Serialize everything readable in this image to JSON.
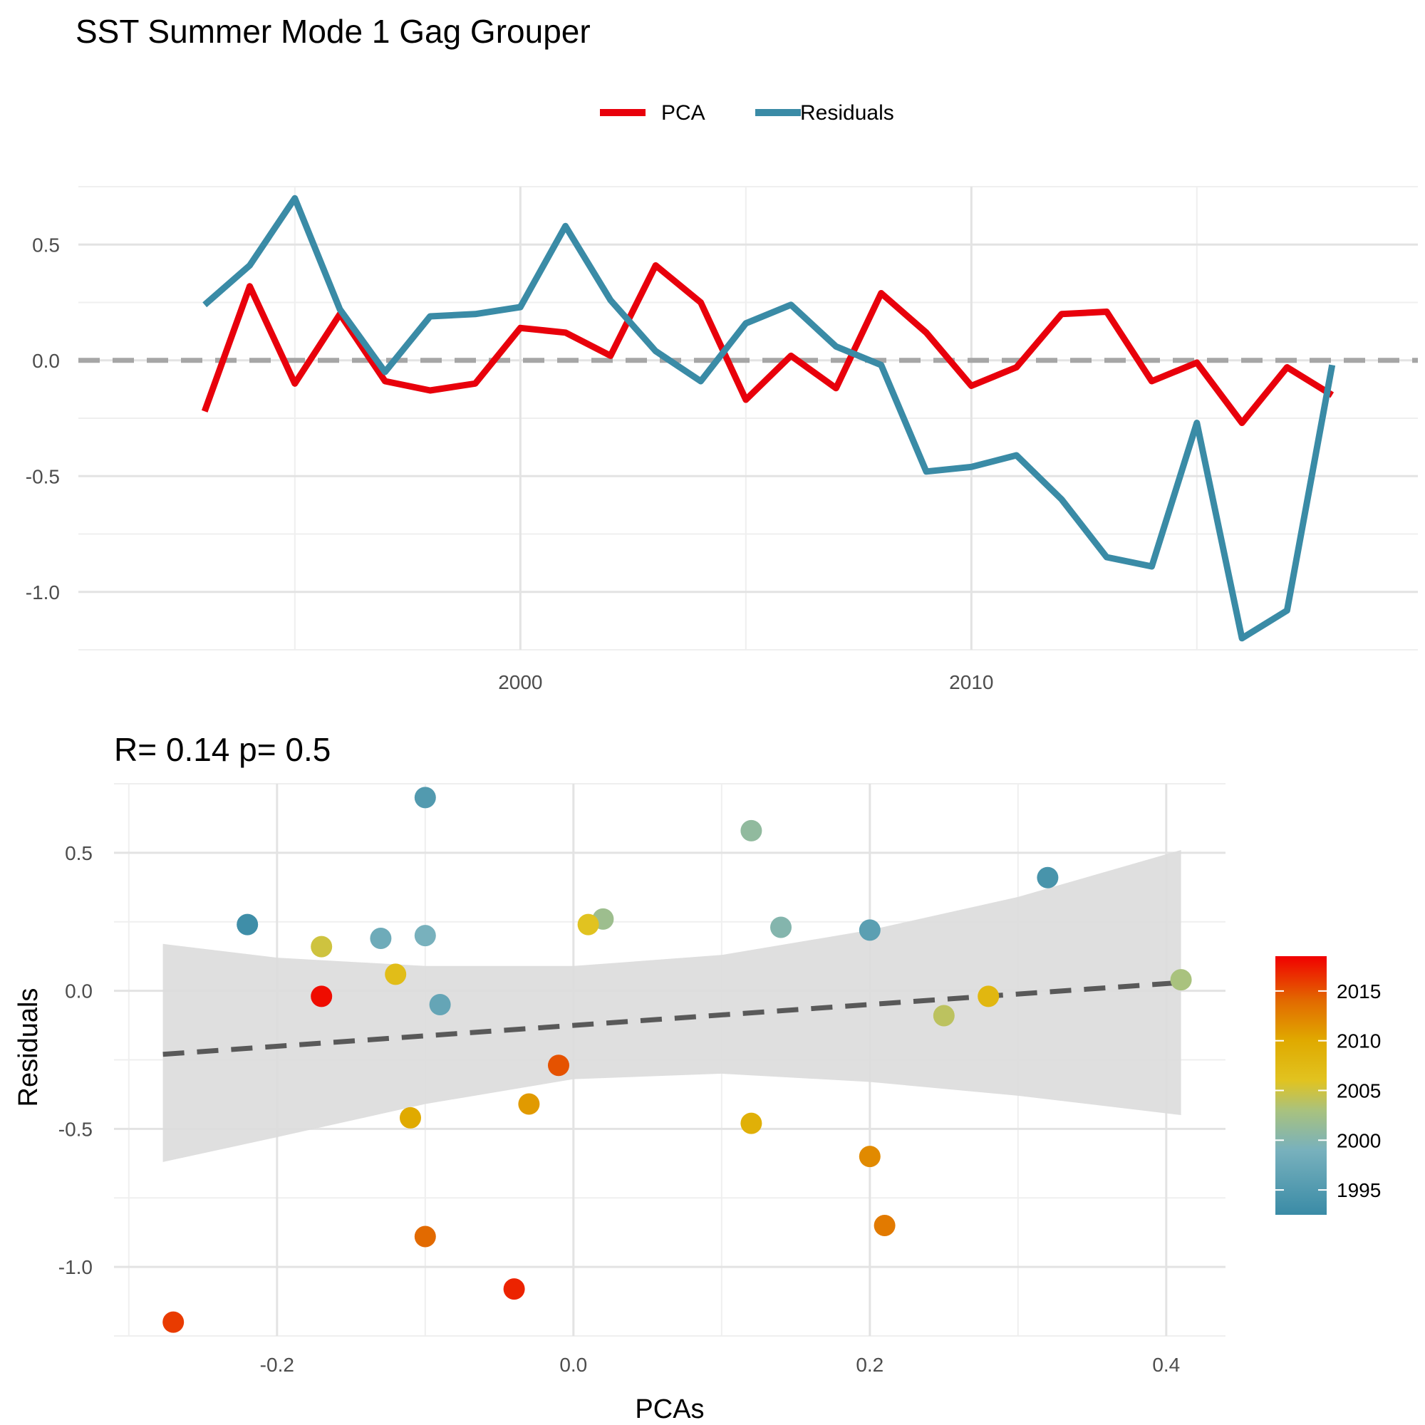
{
  "title": "SST Summer Mode 1 Gag Grouper",
  "legend": [
    {
      "label": "PCA",
      "color": "#e8000b"
    },
    {
      "label": "Residuals",
      "color": "#3a8ba6"
    }
  ],
  "chart_data": [
    {
      "type": "line",
      "x": [
        1993,
        1994,
        1995,
        1996,
        1997,
        1998,
        1999,
        2000,
        2001,
        2002,
        2003,
        2004,
        2005,
        2006,
        2007,
        2008,
        2009,
        2010,
        2011,
        2012,
        2013,
        2014,
        2015,
        2016,
        2017,
        2018,
        2019
      ],
      "series": [
        {
          "name": "PCA",
          "color": "#e8000b",
          "values": [
            -0.22,
            0.32,
            -0.1,
            0.2,
            -0.09,
            -0.13,
            -0.1,
            0.14,
            0.12,
            0.02,
            0.41,
            0.25,
            -0.17,
            0.02,
            -0.12,
            0.29,
            0.12,
            -0.11,
            -0.03,
            0.2,
            0.21,
            -0.09,
            -0.01,
            -0.27,
            -0.03,
            -0.15,
            null
          ]
        },
        {
          "name": "Residuals",
          "color": "#3a8ba6",
          "values": [
            0.24,
            0.41,
            0.7,
            0.22,
            -0.05,
            0.19,
            0.2,
            0.23,
            0.58,
            0.26,
            0.04,
            -0.09,
            0.16,
            0.24,
            0.06,
            -0.02,
            -0.48,
            -0.46,
            -0.41,
            -0.6,
            -0.85,
            -0.89,
            -0.27,
            -1.2,
            -1.08,
            -0.02,
            null
          ]
        }
      ],
      "xlim": [
        1990.2,
        2019.9
      ],
      "ylim": [
        -1.25,
        0.75
      ],
      "x_ticks": [
        2000,
        2010
      ],
      "y_ticks": [
        -1.0,
        -0.5,
        0.0,
        0.5
      ],
      "x_tick_labels": [
        "2000",
        "2010"
      ],
      "y_tick_labels": [
        "-1.0",
        "-0.5",
        "0.0",
        "0.5"
      ],
      "hline": 0,
      "hline_color": "#a6a6a6",
      "grid": true
    },
    {
      "type": "scatter",
      "subtitle": "R= 0.14  p= 0.5",
      "xlabel": "PCAs",
      "ylabel": "Residuals",
      "xlim": [
        -0.31,
        0.44
      ],
      "ylim": [
        -1.25,
        0.75
      ],
      "x_ticks": [
        -0.2,
        0.0,
        0.2,
        0.4
      ],
      "y_ticks": [
        -1.0,
        -0.5,
        0.0,
        0.5
      ],
      "x_tick_labels": [
        "-0.2",
        "0.0",
        "0.2",
        "0.4"
      ],
      "y_tick_labels": [
        "-1.0",
        "-0.5",
        "0.0",
        "0.5"
      ],
      "points": [
        {
          "x": -0.22,
          "y": 0.24,
          "year": 1993
        },
        {
          "x": 0.32,
          "y": 0.41,
          "year": 1994
        },
        {
          "x": -0.1,
          "y": 0.7,
          "year": 1995
        },
        {
          "x": 0.2,
          "y": 0.22,
          "year": 1996
        },
        {
          "x": -0.09,
          "y": -0.05,
          "year": 1997
        },
        {
          "x": -0.13,
          "y": 0.19,
          "year": 1998
        },
        {
          "x": -0.1,
          "y": 0.2,
          "year": 1999
        },
        {
          "x": 0.14,
          "y": 0.23,
          "year": 2000
        },
        {
          "x": 0.12,
          "y": 0.58,
          "year": 2001
        },
        {
          "x": 0.02,
          "y": 0.26,
          "year": 2002
        },
        {
          "x": 0.41,
          "y": 0.04,
          "year": 2003
        },
        {
          "x": 0.25,
          "y": -0.09,
          "year": 2004
        },
        {
          "x": -0.17,
          "y": 0.16,
          "year": 2005
        },
        {
          "x": 0.01,
          "y": 0.24,
          "year": 2006
        },
        {
          "x": -0.12,
          "y": 0.06,
          "year": 2007
        },
        {
          "x": 0.28,
          "y": -0.02,
          "year": 2008
        },
        {
          "x": 0.12,
          "y": -0.48,
          "year": 2009
        },
        {
          "x": -0.11,
          "y": -0.46,
          "year": 2010
        },
        {
          "x": -0.03,
          "y": -0.41,
          "year": 2011
        },
        {
          "x": 0.2,
          "y": -0.6,
          "year": 2012
        },
        {
          "x": 0.21,
          "y": -0.85,
          "year": 2013
        },
        {
          "x": -0.1,
          "y": -0.89,
          "year": 2014
        },
        {
          "x": -0.01,
          "y": -0.27,
          "year": 2015
        },
        {
          "x": -0.27,
          "y": -1.2,
          "year": 2016
        },
        {
          "x": -0.04,
          "y": -1.08,
          "year": 2017
        },
        {
          "x": -0.17,
          "y": -0.02,
          "year": 2018
        }
      ],
      "fit": {
        "x0": -0.277,
        "y0": -0.23,
        "x1": 0.41,
        "y1": 0.03
      },
      "ribbon": [
        {
          "x": -0.277,
          "lo": -0.62,
          "hi": 0.17
        },
        {
          "x": -0.2,
          "lo": -0.53,
          "hi": 0.12
        },
        {
          "x": -0.1,
          "lo": -0.41,
          "hi": 0.09
        },
        {
          "x": 0.0,
          "lo": -0.32,
          "hi": 0.09
        },
        {
          "x": 0.1,
          "lo": -0.3,
          "hi": 0.13
        },
        {
          "x": 0.2,
          "lo": -0.33,
          "hi": 0.22
        },
        {
          "x": 0.3,
          "lo": -0.38,
          "hi": 0.34
        },
        {
          "x": 0.41,
          "lo": -0.45,
          "hi": 0.51
        }
      ],
      "colorbar": {
        "min": 1992.5,
        "max": 2018.5,
        "ticks": [
          1995,
          2000,
          2005,
          2010,
          2015
        ],
        "tick_labels": [
          "1995",
          "2000",
          "2005",
          "2010",
          "2015"
        ],
        "stops": [
          {
            "year": 1992.5,
            "color": "#3a8ba6"
          },
          {
            "year": 1999,
            "color": "#78b1bd"
          },
          {
            "year": 2003,
            "color": "#a9c27e"
          },
          {
            "year": 2006,
            "color": "#e1c320"
          },
          {
            "year": 2010,
            "color": "#e0aa00"
          },
          {
            "year": 2014,
            "color": "#e26a00"
          },
          {
            "year": 2018.5,
            "color": "#f10000"
          }
        ]
      }
    }
  ]
}
